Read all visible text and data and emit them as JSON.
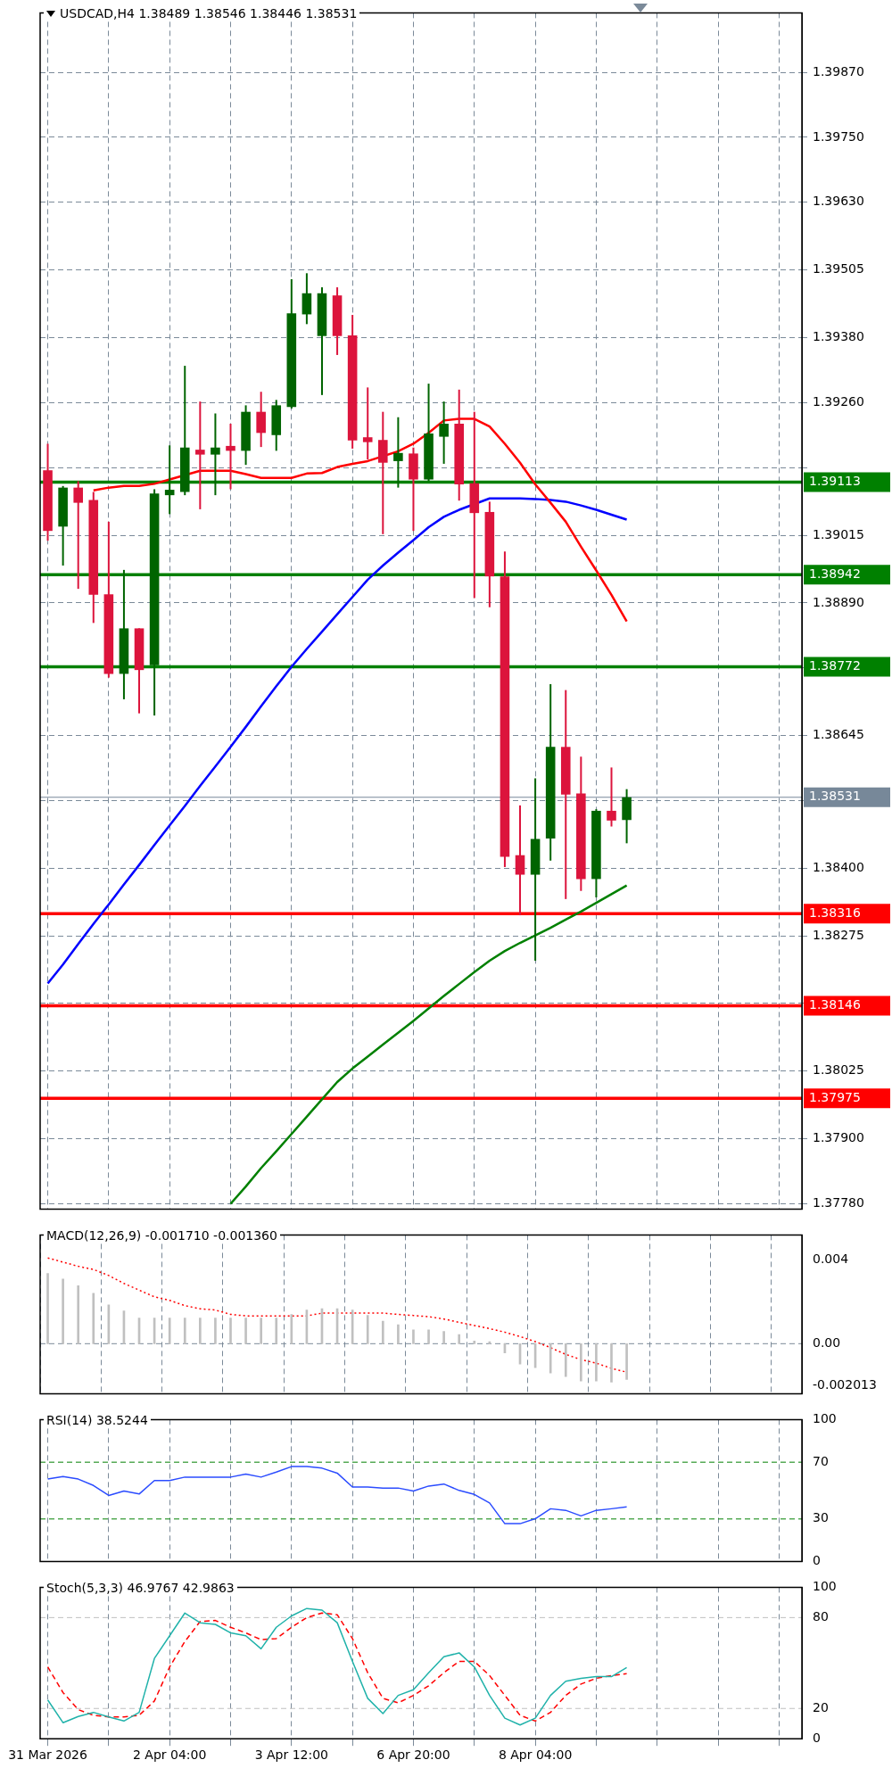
{
  "chart_data": [
    {
      "type": "candlestick",
      "title": "USDCAD,H4 1.38489 1.38546 1.38446 1.38531",
      "categories": [
        null,
        null,
        null,
        null,
        null,
        null,
        null,
        null,
        null,
        null,
        null,
        null,
        null,
        null,
        null,
        null,
        null,
        null,
        null,
        null,
        null,
        null,
        null,
        null,
        null,
        null,
        null,
        null,
        null,
        null,
        null,
        null,
        null,
        null,
        null,
        null,
        null,
        null,
        null,
        null,
        null,
        null,
        null,
        null,
        null,
        null,
        null,
        null,
        null,
        null
      ],
      "ohlc": [
        [
          1.39135,
          1.39184,
          1.39005,
          1.39023
        ],
        [
          1.39031,
          1.39106,
          1.38959,
          1.39103
        ],
        [
          1.39103,
          1.39115,
          1.38916,
          1.39075
        ],
        [
          1.3908,
          1.39095,
          1.38853,
          1.38905
        ],
        [
          1.38906,
          1.3904,
          1.38752,
          1.38759
        ],
        [
          1.38759,
          1.38951,
          1.38712,
          1.38843
        ],
        [
          1.38843,
          1.38843,
          1.38686,
          1.38766
        ],
        [
          1.38775,
          1.391,
          1.38682,
          1.39092
        ],
        [
          1.39089,
          1.39181,
          1.39054,
          1.39099
        ],
        [
          1.39095,
          1.39328,
          1.39089,
          1.39177
        ],
        [
          1.39173,
          1.39262,
          1.39063,
          1.39164
        ],
        [
          1.39164,
          1.3924,
          1.39089,
          1.39177
        ],
        [
          1.3918,
          1.39221,
          1.391,
          1.39171
        ],
        [
          1.39171,
          1.39255,
          1.39145,
          1.39243
        ],
        [
          1.39243,
          1.3928,
          1.39178,
          1.39204
        ],
        [
          1.392,
          1.39265,
          1.39171,
          1.39255
        ],
        [
          1.39252,
          1.39488,
          1.39249,
          1.39425
        ],
        [
          1.39423,
          1.39499,
          1.39405,
          1.39462
        ],
        [
          1.39383,
          1.39473,
          1.39274,
          1.39462
        ],
        [
          1.39458,
          1.39473,
          1.39348,
          1.39383
        ],
        [
          1.39384,
          1.39422,
          1.39175,
          1.3919
        ],
        [
          1.39196,
          1.39288,
          1.39155,
          1.39187
        ],
        [
          1.39191,
          1.39243,
          1.39017,
          1.39149
        ],
        [
          1.39152,
          1.39233,
          1.39103,
          1.39167
        ],
        [
          1.39166,
          1.39177,
          1.39023,
          1.39118
        ],
        [
          1.39118,
          1.39295,
          1.39115,
          1.39203
        ],
        [
          1.39197,
          1.39262,
          1.39147,
          1.39221
        ],
        [
          1.39221,
          1.39284,
          1.39079,
          1.39109
        ],
        [
          1.39111,
          1.39243,
          1.38899,
          1.39056
        ],
        [
          1.39058,
          1.39077,
          1.38882,
          1.38939
        ],
        [
          1.38939,
          1.38985,
          1.38402,
          1.38421
        ],
        [
          1.38424,
          1.38516,
          1.38313,
          1.38388
        ],
        [
          1.38388,
          1.38566,
          1.38229,
          1.38454
        ],
        [
          1.38455,
          1.3874,
          1.38414,
          1.38624
        ],
        [
          1.38624,
          1.38729,
          1.38343,
          1.38536
        ],
        [
          1.38538,
          1.38606,
          1.38358,
          1.3838
        ],
        [
          1.3838,
          1.38509,
          1.38346,
          1.38506
        ],
        [
          1.38506,
          1.38586,
          1.38477,
          1.38488
        ],
        [
          1.38489,
          1.38546,
          1.38446,
          1.38531
        ],
        null,
        null,
        null,
        null,
        null,
        null,
        null,
        null,
        null,
        null,
        null
      ],
      "colors": [
        "#dc143c",
        "#006400",
        "#dc143c",
        "#dc143c",
        "#dc143c",
        "#006400",
        "#dc143c",
        "#006400",
        "#006400",
        "#006400",
        "#dc143c",
        "#006400",
        "#dc143c",
        "#006400",
        "#dc143c",
        "#006400",
        "#006400",
        "#006400",
        "#006400",
        "#dc143c",
        "#dc143c",
        "#dc143c",
        "#dc143c",
        "#006400",
        "#dc143c",
        "#006400",
        "#006400",
        "#dc143c",
        "#dc143c",
        "#dc143c",
        "#dc143c",
        "#dc143c",
        "#006400",
        "#006400",
        "#dc143c",
        "#dc143c",
        "#006400",
        "#dc143c",
        "#006400",
        null,
        null,
        null,
        null,
        null,
        null,
        null,
        null,
        null,
        null,
        null
      ],
      "series": [
        {
          "type": "line",
          "color": "#ff0000",
          "values": [
            null,
            null,
            null,
            1.39098,
            1.39103,
            1.39106,
            1.39106,
            1.3911,
            1.39118,
            null,
            1.39134,
            1.39134,
            1.39134,
            1.39128,
            1.39121,
            1.39121,
            1.39121,
            1.39129,
            1.3913,
            1.39141,
            1.39147,
            1.39152,
            null,
            1.3917,
            1.39184,
            1.39204,
            1.39227,
            1.3923,
            1.3923,
            1.39216,
            1.39184,
            1.39149,
            1.39109,
            1.39075,
            1.3904,
            1.38994,
            1.3895,
            1.38905,
            1.38856,
            null,
            null,
            null,
            null,
            null,
            null,
            null,
            null,
            null,
            null,
            null
          ]
        },
        {
          "type": "line",
          "color": "#0000ff",
          "values": [
            1.38187,
            1.38222,
            1.3826,
            1.38297,
            1.38333,
            1.3837,
            1.38406,
            1.38443,
            1.38479,
            1.38515,
            1.38552,
            1.38588,
            1.38624,
            1.38661,
            1.38699,
            1.38736,
            1.38772,
            1.38805,
            1.38837,
            1.38869,
            1.38901,
            1.38933,
            1.38959,
            1.38983,
            1.39006,
            1.3903,
            1.39049,
            1.39062,
            null,
            1.39083,
            1.39083,
            1.39083,
            1.39082,
            1.3908,
            1.39077,
            1.3907,
            1.39062,
            1.39053,
            1.39044,
            null,
            null,
            null,
            null,
            null,
            null,
            null,
            null,
            null,
            null,
            null
          ]
        },
        {
          "type": "line",
          "color": "#008000",
          "values": [
            null,
            null,
            null,
            null,
            null,
            null,
            null,
            null,
            null,
            null,
            null,
            null,
            1.3778,
            1.37812,
            1.37846,
            1.37877,
            1.37909,
            1.37941,
            1.37973,
            1.38005,
            1.3803,
            1.38052,
            1.38074,
            1.38096,
            1.38118,
            1.38141,
            1.38164,
            1.38186,
            1.38208,
            1.38229,
            1.38247,
            1.38262,
            1.38276,
            1.3829,
            1.38305,
            1.3832,
            1.38336,
            1.38352,
            1.38368,
            null,
            null,
            null,
            null,
            null,
            null,
            null,
            null,
            null,
            null,
            null
          ]
        }
      ],
      "ylim": [
        1.3777,
        1.3998
      ],
      "yticks": [
        {
          "value": 1.3987,
          "label": "1.39870"
        },
        {
          "value": 1.3975,
          "label": "1.39750"
        },
        {
          "value": 1.3963,
          "label": "1.39630"
        },
        1.39505,
        {
          "value": 1.3938,
          "label": "1.39380"
        },
        {
          "value": 1.3926,
          "label": "1.39260"
        },
        {
          "value": 1.3914,
          "label": null
        },
        1.39015,
        {
          "value": 1.3889,
          "label": "1.38890"
        },
        {
          "value": 1.3877,
          "label": null
        },
        1.38645,
        {
          "value": 1.38525,
          "label": null
        },
        {
          "value": 1.384,
          "label": "1.38400"
        },
        1.38275,
        {
          "value": 1.3815,
          "label": null
        },
        1.38025,
        {
          "value": 1.379,
          "label": "1.37900"
        },
        {
          "value": 1.3778,
          "label": "1.37780"
        }
      ],
      "grid": true,
      "tick_labels": "y",
      "ref_lines": [
        {
          "axis": "y",
          "value": 1.39113,
          "label": "1.39113",
          "color": "#008000"
        },
        {
          "axis": "y",
          "value": 1.38942,
          "label": "1.38942",
          "color": "#008000"
        },
        {
          "axis": "y",
          "value": 1.38772,
          "label": "1.38772",
          "color": "#008000"
        },
        {
          "axis": "y",
          "value": 1.38531,
          "label": "1.38531",
          "color": "#778899",
          "line_style": "solid"
        },
        {
          "axis": "y",
          "value": 1.38316,
          "label": "1.38316",
          "color": "#ff0000"
        },
        {
          "axis": "y",
          "value": 1.38146,
          "label": "1.38146",
          "color": "#ff0000"
        },
        {
          "axis": "y",
          "value": 1.37975,
          "label": "1.37975",
          "color": "#ff0000"
        }
      ]
    },
    {
      "type": "bar",
      "title": "MACD(12,26,9) -0.001710 -0.001360",
      "categories": [
        null,
        null,
        null,
        null,
        null,
        null,
        null,
        null,
        null,
        null,
        null,
        null,
        null,
        null,
        null,
        null,
        null,
        null,
        null,
        null,
        null,
        null,
        null,
        null,
        null,
        null,
        null,
        null,
        null,
        null,
        null,
        null,
        null,
        null,
        null,
        null,
        null,
        null,
        null,
        null,
        null,
        null,
        null,
        null,
        null,
        null,
        null,
        null,
        null,
        null
      ],
      "series": [
        {
          "type": "bar",
          "color": "#c0c0c0",
          "values": [
            0.00336,
            0.00309,
            0.00277,
            0.00241,
            0.00186,
            0.00157,
            0.00123,
            0.00123,
            0.00123,
            0.00123,
            0.00123,
            0.00123,
            0.00123,
            0.00123,
            0.00123,
            0.00123,
            0.0014,
            0.00161,
            0.00167,
            0.00167,
            0.00161,
            0.00135,
            0.00108,
            0.00091,
            0.00066,
            0.00066,
            0.00059,
            0.00044,
            0.00013,
            0.0001,
            -0.00044,
            -0.00097,
            -0.00114,
            -0.0014,
            -0.00157,
            -0.00178,
            -0.00178,
            -0.00184,
            -0.00171,
            null,
            null,
            null,
            null,
            null,
            null,
            null,
            null,
            null,
            null,
            null
          ]
        },
        {
          "type": "line",
          "color": "#ff0000",
          "line_style": "dotted",
          "values": [
            0.0041,
            0.0039,
            0.0037,
            0.00355,
            0.00326,
            0.00288,
            0.00256,
            0.00224,
            0.00207,
            0.00182,
            0.00167,
            0.00161,
            0.0014,
            0.00133,
            0.00133,
            0.00133,
            0.00133,
            0.00133,
            0.00146,
            0.00146,
            0.00146,
            0.00146,
            0.00146,
            0.0014,
            0.00135,
            0.00129,
            0.00118,
            0.00102,
            0.00087,
            0.00072,
            0.00055,
            0.00034,
            0.0001,
            -0.00019,
            -0.00051,
            -0.00076,
            -0.00093,
            -0.00118,
            -0.00136,
            null,
            null,
            null,
            null,
            null,
            null,
            null,
            null,
            null,
            null,
            null
          ]
        }
      ],
      "ylim": [
        -0.0024,
        0.0052
      ],
      "yticks": [
        0.004,
        {
          "value": 0,
          "label": "0.00"
        },
        -0.002013
      ],
      "grid": "x",
      "tick_labels": "y",
      "ref_lines": [
        {
          "axis": "y",
          "value": 0,
          "color": "#7b8a99",
          "line_style": "dashed"
        }
      ]
    },
    {
      "type": "line",
      "title": "RSI(14) 38.5244",
      "categories": [
        null,
        null,
        null,
        null,
        null,
        null,
        null,
        null,
        null,
        null,
        null,
        null,
        null,
        null,
        null,
        null,
        null,
        null,
        null,
        null,
        null,
        null,
        null,
        null,
        null,
        null,
        null,
        null,
        null,
        null,
        null,
        null,
        null,
        null,
        null,
        null,
        null,
        null,
        null,
        null,
        null,
        null,
        null,
        null,
        null,
        null,
        null,
        null,
        null,
        null
      ],
      "series": [
        {
          "type": "line",
          "color": "#2b4cff",
          "values": [
            58.1,
            59.9,
            58.1,
            53.6,
            46.6,
            49.7,
            47.6,
            57.1,
            57.1,
            59.5,
            59.5,
            59.5,
            59.5,
            61.6,
            59.5,
            63.0,
            66.9,
            66.9,
            65.8,
            62.3,
            52.5,
            52.5,
            51.8,
            51.8,
            49.7,
            53.2,
            54.6,
            50.1,
            47.3,
            41.3,
            26.7,
            26.7,
            30.2,
            37.2,
            36.1,
            32.2,
            36.1,
            37.2,
            38.5244,
            null,
            null,
            null,
            null,
            null,
            null,
            null,
            null,
            null,
            null,
            null
          ]
        }
      ],
      "ylim": [
        0,
        100
      ],
      "yticks": [
        0,
        30,
        70,
        100
      ],
      "grid": "x",
      "tick_labels": "y",
      "ref_lines": [
        {
          "axis": "y",
          "value": 70,
          "color": "#008000",
          "line_style": "dashed"
        },
        {
          "axis": "y",
          "value": 30,
          "color": "#008000",
          "line_style": "dashed"
        }
      ]
    },
    {
      "type": "line",
      "title": "Stoch(5,3,3) 46.9767 42.9863",
      "categories": [
        "31 Mar 2026",
        null,
        null,
        null,
        null,
        null,
        null,
        null,
        "2 Apr 04:00",
        null,
        null,
        null,
        null,
        null,
        null,
        null,
        "3 Apr 12:00",
        null,
        null,
        null,
        null,
        null,
        null,
        null,
        "6 Apr 20:00",
        null,
        null,
        null,
        null,
        null,
        null,
        null,
        "8 Apr 04:00",
        null,
        null,
        null,
        null,
        null,
        null,
        null,
        null,
        null,
        null,
        null,
        null,
        null,
        null,
        null,
        null,
        null
      ],
      "series": [
        {
          "type": "line",
          "color": "#20b2aa",
          "values": [
            25.6,
            10.6,
            14.7,
            17.4,
            14.4,
            11.7,
            17.4,
            53.0,
            68.0,
            83.0,
            76.6,
            75.5,
            69.9,
            68.0,
            59.4,
            73.6,
            81.1,
            86.0,
            84.9,
            76.6,
            51.1,
            26.7,
            16.6,
            28.6,
            32.4,
            43.6,
            54.1,
            56.7,
            47.4,
            28.6,
            13.6,
            9.1,
            13.6,
            28.6,
            38.0,
            39.9,
            41.0,
            41.0,
            46.9767,
            null,
            null,
            null,
            null,
            null,
            null,
            null,
            null,
            null,
            null,
            null
          ]
        },
        {
          "type": "line",
          "color": "#ff0000",
          "line_style": "dashed",
          "values": [
            47.4,
            30.5,
            19.2,
            15.5,
            14.4,
            14.4,
            15.5,
            24.9,
            47.4,
            64.2,
            77.4,
            78.1,
            73.6,
            69.9,
            65.4,
            66.1,
            73.6,
            80.0,
            83.0,
            81.9,
            66.1,
            43.6,
            26.7,
            23.7,
            28.6,
            35.0,
            43.6,
            51.1,
            51.1,
            41.7,
            28.6,
            15.5,
            11.7,
            17.4,
            28.6,
            36.1,
            39.9,
            41.7,
            42.9863,
            null,
            null,
            null,
            null,
            null,
            null,
            null,
            null,
            null,
            null,
            null
          ]
        }
      ],
      "ylim": [
        0,
        100
      ],
      "yticks": [
        0,
        20,
        80,
        100
      ],
      "grid": "x",
      "ref_lines": [
        {
          "axis": "y",
          "value": 80,
          "color": "#c0c0c0",
          "line_style": "dashed"
        },
        {
          "axis": "y",
          "value": 20,
          "color": "#c0c0c0",
          "line_style": "dashed"
        }
      ]
    }
  ]
}
